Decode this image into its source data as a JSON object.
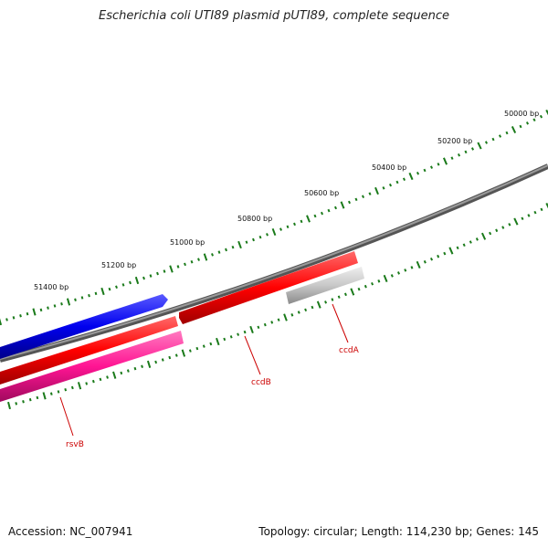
{
  "title": "Escherichia coli UTI89 plasmid pUTI89, complete sequence",
  "footer": {
    "accession": "Accession: NC_007941",
    "summary": "Topology: circular; Length: 114,230 bp; Genes: 145"
  },
  "scale": {
    "tick_labels": [
      "50000 bp",
      "50200 bp",
      "50400 bp",
      "50600 bp",
      "50800 bp",
      "51000 bp",
      "51200 bp",
      "51400 bp"
    ]
  },
  "genes": [
    {
      "name": "ccdA",
      "color": "#c8c8c8",
      "labeled": true
    },
    {
      "name": "ccdB",
      "color": "#ff0000",
      "labeled": true
    },
    {
      "name": "rsvB",
      "color": "#ff1493",
      "labeled": true
    },
    {
      "name": "",
      "color": "#0000ff",
      "labeled": false
    }
  ],
  "colors": {
    "backbone": "#808080",
    "tick": "#1a7a1a",
    "label": "#cc0000"
  }
}
